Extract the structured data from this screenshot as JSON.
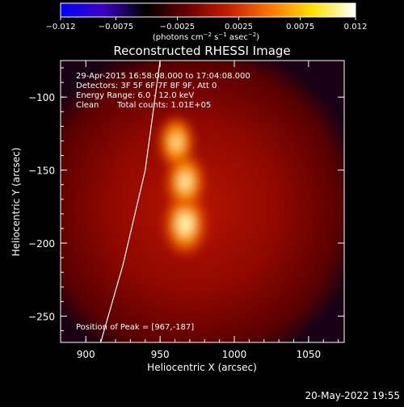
{
  "colorbar": {
    "tick_labels": [
      "-0.012",
      "-0.0075",
      "-0.0025",
      "0.0025",
      "0.0075",
      "0.012"
    ],
    "min": -0.012,
    "max": 0.012,
    "colors": [
      "#0000ff",
      "#3c00c8",
      "#000000",
      "#6a0000",
      "#c81e00",
      "#ff7800",
      "#ffe200",
      "#ffffff"
    ]
  },
  "chart_data": {
    "type": "heatmap",
    "title": "Reconstructed RHESSI Image",
    "xlabel": "Heliocentric X (arcsec)",
    "ylabel": "Heliocentric Y (arcsec)",
    "xlim": [
      883,
      1074
    ],
    "ylim": [
      -268,
      -75
    ],
    "x_ticks": [
      900,
      950,
      1000,
      1050
    ],
    "y_ticks": [
      -100,
      -150,
      -200,
      -250
    ],
    "sources": [
      {
        "x": 967,
        "y": -187,
        "relative_intensity": 1.0
      },
      {
        "x": 967,
        "y": -158,
        "relative_intensity": 0.8
      },
      {
        "x": 961,
        "y": -131,
        "relative_intensity": 0.65
      }
    ],
    "peak": [
      967,
      -187
    ],
    "limb": [
      [
        950,
        -75
      ],
      [
        940,
        -150
      ],
      [
        925,
        -215
      ],
      [
        910,
        -268
      ]
    ],
    "annotations": {
      "time": "29-Apr-2015 16:58:08.000 to 17:04:08.000",
      "detectors": "Detectors: 3F 5F 6F 7F 8F 9F, Att 0",
      "energy": "Energy Range: 6.0 - 12.0 keV",
      "method": "Clean",
      "counts": "Total counts: 1.01E+05",
      "peak_text": "Position of Peak = [967,-187]"
    }
  },
  "footer": {
    "date": "20-May-2022 19:55"
  }
}
